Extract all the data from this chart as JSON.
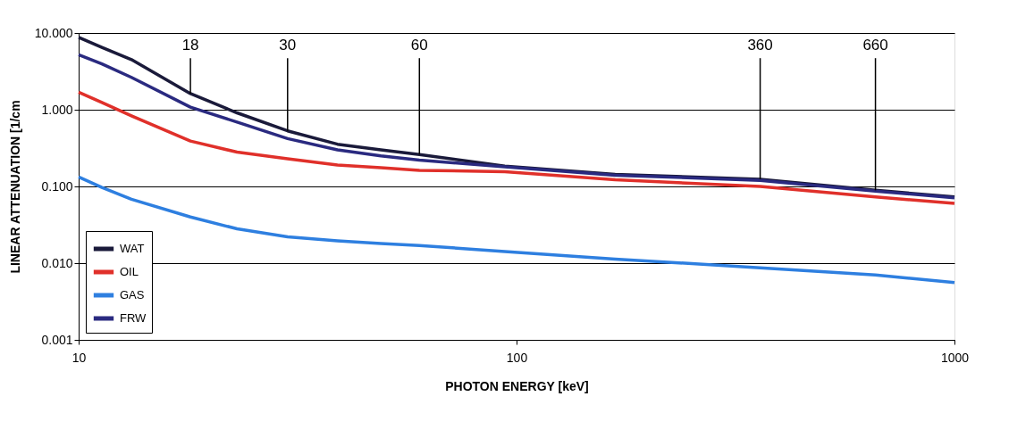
{
  "chart_data": {
    "type": "line",
    "xlabel": "PHOTON ENERGY [keV]",
    "ylabel": "LINEAR ATTENUATION [1/cm",
    "x": [
      10,
      11.3,
      13.2,
      18,
      23,
      30,
      39,
      49,
      60,
      94,
      168,
      360,
      660,
      1000
    ],
    "series": [
      {
        "name": "WAT",
        "color": "#1a1a3a",
        "values": [
          8.8,
          6.5,
          4.5,
          1.62,
          0.91,
          0.53,
          0.355,
          0.3,
          0.26,
          0.184,
          0.144,
          0.124,
          0.089,
          0.073
        ]
      },
      {
        "name": "OIL",
        "color": "#e0302a",
        "values": [
          1.69,
          1.24,
          0.83,
          0.39,
          0.28,
          0.23,
          0.19,
          0.175,
          0.162,
          0.156,
          0.122,
          0.1,
          0.073,
          0.06
        ]
      },
      {
        "name": "GAS",
        "color": "#2e7fe0",
        "values": [
          0.133,
          0.097,
          0.068,
          0.04,
          0.028,
          0.022,
          0.0195,
          0.018,
          0.017,
          0.0142,
          0.0113,
          0.0087,
          0.007,
          0.0056
        ]
      },
      {
        "name": "FRW",
        "color": "#2a2a80",
        "values": [
          5.2,
          3.95,
          2.64,
          1.08,
          0.69,
          0.42,
          0.3,
          0.25,
          0.22,
          0.18,
          0.14,
          0.12,
          0.087,
          0.071
        ]
      }
    ],
    "xlim": [
      10,
      1000
    ],
    "ylim": [
      0.001,
      10
    ],
    "xticks": [
      10,
      100,
      1000
    ],
    "yticks": [
      {
        "value": 0.001,
        "label": "0.001"
      },
      {
        "value": 0.01,
        "label": "0.010"
      },
      {
        "value": 0.1,
        "label": "0.100"
      },
      {
        "value": 1,
        "label": "1.000"
      },
      {
        "value": 10,
        "label": "10.000"
      }
    ],
    "log": "xy",
    "grid": "y",
    "legend": "bottom left",
    "line_style": "solid",
    "marker": "none",
    "annotations": [
      {
        "text": "18",
        "x": 18,
        "y": 1.62
      },
      {
        "text": "30",
        "x": 30,
        "y": 0.53
      },
      {
        "text": "60",
        "x": 60,
        "y": 0.26
      },
      {
        "text": "360",
        "x": 360,
        "y": 0.124
      },
      {
        "text": "660",
        "x": 660,
        "y": 0.089
      }
    ]
  }
}
